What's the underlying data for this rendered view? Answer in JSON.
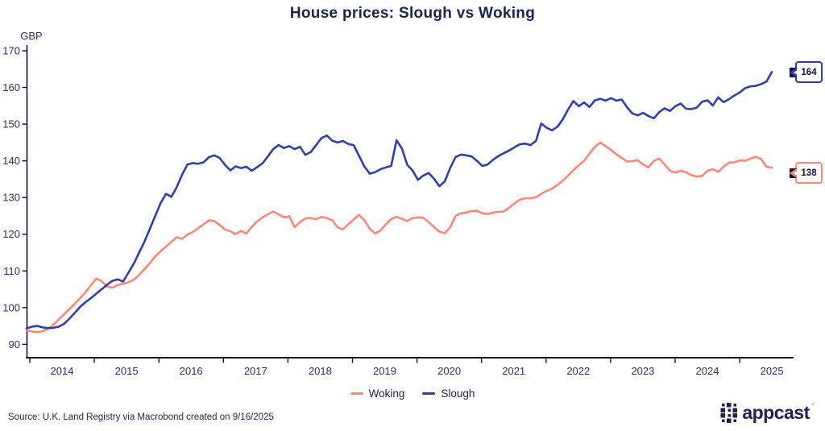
{
  "title": "House prices: Slough vs Woking",
  "source_note": "Source: U.K. Land Registry via Macrobond created on 9/16/2025",
  "logo": {
    "text": "appcast",
    "color": "#1f2150"
  },
  "colors": {
    "woking": "#f8897b",
    "slough": "#333fa8",
    "axis": "#14142c",
    "text": "#2e2e60",
    "title": "#1e2150"
  },
  "chart_data": {
    "type": "line",
    "title": "House prices: Slough vs Woking",
    "unit_label": "GBP",
    "frequency": "monthly",
    "x_start": "2013-12",
    "x_end": "2025-07",
    "grid": false,
    "legend_position": "bottom-center",
    "x_axis": {
      "ticks": [
        2014,
        2015,
        2016,
        2017,
        2018,
        2019,
        2020,
        2021,
        2022,
        2023,
        2024,
        2025
      ]
    },
    "y_axis": {
      "ticks": [
        90,
        100,
        110,
        120,
        130,
        140,
        150,
        160,
        170
      ],
      "ylim": [
        86,
        172
      ]
    },
    "series": [
      {
        "name": "Woking",
        "color": "#f8897b",
        "end_label": "138",
        "values": [
          93.8,
          93.5,
          93.3,
          93.6,
          94.2,
          95.3,
          96.8,
          98.2,
          99.6,
          101.1,
          102.6,
          104.2,
          106.1,
          107.9,
          107.2,
          105.8,
          105.4,
          106.2,
          106.5,
          106.9,
          107.6,
          108.9,
          110.5,
          112.2,
          113.9,
          115.4,
          116.6,
          117.9,
          119.2,
          118.7,
          119.9,
          120.6,
          121.6,
          122.7,
          123.8,
          123.6,
          122.5,
          121.3,
          120.8,
          120.0,
          120.9,
          120.2,
          122.0,
          123.5,
          124.6,
          125.4,
          126.2,
          125.4,
          124.6,
          124.9,
          121.9,
          123.3,
          124.3,
          124.4,
          124.1,
          124.7,
          124.4,
          123.8,
          121.9,
          121.3,
          122.7,
          124.0,
          125.3,
          123.8,
          121.5,
          120.2,
          121.0,
          122.7,
          124.1,
          124.7,
          124.2,
          123.6,
          124.4,
          124.6,
          124.5,
          123.3,
          122.0,
          120.7,
          120.3,
          121.8,
          125.0,
          125.7,
          125.9,
          126.3,
          126.4,
          125.7,
          125.5,
          125.9,
          126.1,
          126.2,
          127.2,
          128.4,
          129.4,
          129.8,
          129.8,
          130.1,
          131.0,
          131.8,
          132.4,
          133.4,
          134.6,
          136.0,
          137.5,
          138.8,
          140.0,
          142.0,
          143.8,
          145.0,
          144.0,
          143.0,
          141.8,
          140.8,
          139.8,
          139.9,
          140.2,
          139.0,
          138.2,
          140.0,
          140.6,
          139.0,
          137.3,
          136.8,
          137.3,
          136.9,
          136.1,
          135.7,
          135.9,
          137.3,
          137.7,
          137.0,
          138.4,
          139.5,
          139.6,
          140.1,
          140.0,
          140.6,
          141.1,
          140.5,
          138.4,
          138.1
        ]
      },
      {
        "name": "Slough",
        "color": "#333fa8",
        "end_label": "164",
        "values": [
          94.3,
          94.8,
          95.0,
          94.6,
          94.4,
          94.5,
          94.8,
          95.6,
          97.0,
          98.6,
          100.2,
          101.5,
          102.6,
          103.8,
          105.0,
          106.2,
          107.3,
          107.7,
          107.1,
          109.5,
          112.0,
          115.0,
          118.0,
          121.5,
          125.0,
          128.5,
          131.0,
          130.2,
          132.8,
          136.2,
          139.0,
          139.4,
          139.2,
          139.6,
          141.0,
          141.5,
          140.8,
          138.9,
          137.4,
          138.5,
          138.0,
          138.4,
          137.3,
          138.3,
          139.3,
          141.2,
          143.2,
          144.3,
          143.5,
          144.0,
          143.2,
          143.8,
          141.6,
          142.4,
          144.3,
          146.2,
          146.9,
          145.5,
          145.0,
          145.4,
          144.6,
          144.3,
          141.4,
          138.5,
          136.5,
          136.9,
          137.7,
          138.2,
          138.6,
          145.6,
          143.4,
          138.9,
          137.4,
          134.8,
          136.0,
          136.7,
          135.1,
          133.1,
          134.4,
          138.0,
          141.0,
          141.7,
          141.5,
          141.2,
          140.0,
          138.6,
          139.0,
          140.3,
          141.3,
          142.1,
          142.8,
          143.7,
          144.5,
          144.7,
          144.3,
          145.4,
          150.2,
          149.0,
          148.3,
          149.3,
          151.3,
          154.0,
          156.3,
          154.9,
          155.9,
          154.7,
          156.5,
          156.9,
          156.4,
          157.1,
          156.4,
          156.7,
          154.6,
          152.9,
          152.4,
          153.1,
          152.2,
          151.6,
          153.3,
          154.3,
          153.6,
          154.9,
          155.6,
          154.2,
          154.1,
          154.5,
          156.1,
          156.5,
          155.1,
          157.3,
          156.0,
          156.8,
          157.8,
          158.6,
          159.8,
          160.3,
          160.4,
          160.9,
          161.6,
          164.2
        ]
      }
    ]
  }
}
